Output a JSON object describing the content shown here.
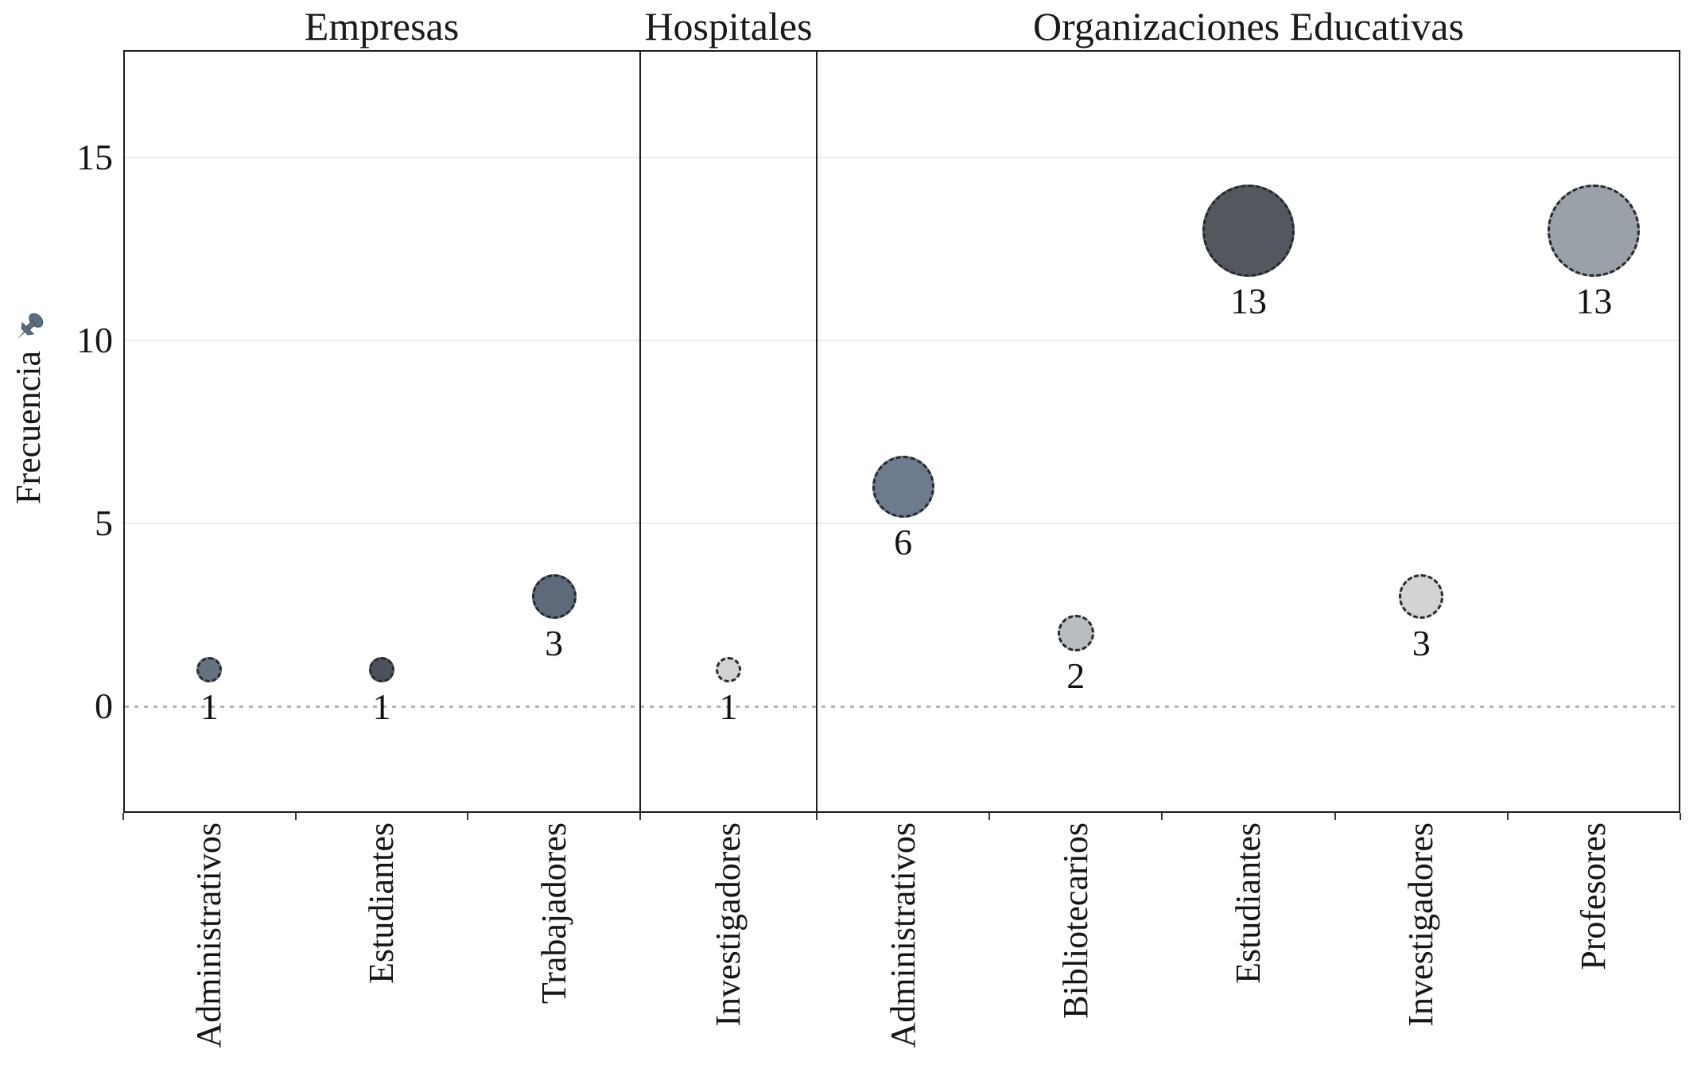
{
  "chart_data": {
    "type": "scatter",
    "variant": "faceted-bubble",
    "ylabel": "Frecuencia",
    "yticks": [
      15,
      10,
      5,
      0
    ],
    "ylim": [
      -3,
      17.8
    ],
    "grid": "horizontal-light",
    "zero_line": "dotted",
    "legend": "none",
    "panels": [
      {
        "title": "Empresas",
        "points": [
          {
            "category": "Administrativos",
            "value": 1,
            "fill": "#67727f"
          },
          {
            "category": "Estudiantes",
            "value": 1,
            "fill": "#4b525c"
          },
          {
            "category": "Trabajadores",
            "value": 3,
            "fill": "#5e6a79"
          }
        ]
      },
      {
        "title": "Hospitales",
        "points": [
          {
            "category": "Investigadores",
            "value": 1,
            "fill": "#d2d3d4"
          }
        ]
      },
      {
        "title": "Organizaciones Educativas",
        "points": [
          {
            "category": "Administrativos",
            "value": 6,
            "fill": "#6e7b8c"
          },
          {
            "category": "Bibliotecarios",
            "value": 2,
            "fill": "#b9bdc0"
          },
          {
            "category": "Estudiantes",
            "value": 13,
            "fill": "#53585f"
          },
          {
            "category": "Investigadores",
            "value": 3,
            "fill": "#d2d3d4"
          },
          {
            "category": "Profesores",
            "value": 13,
            "fill": "#9ba1a8"
          }
        ]
      }
    ],
    "colors": {
      "mark_border": "#26292e",
      "frame": "#1e1e1e",
      "grid": "#ececec",
      "zero_line_color": "#b4b4b4",
      "text": "#14161a",
      "pin_icon": "#5d6e80"
    },
    "icons": {
      "pin": "pushpin-icon"
    }
  }
}
